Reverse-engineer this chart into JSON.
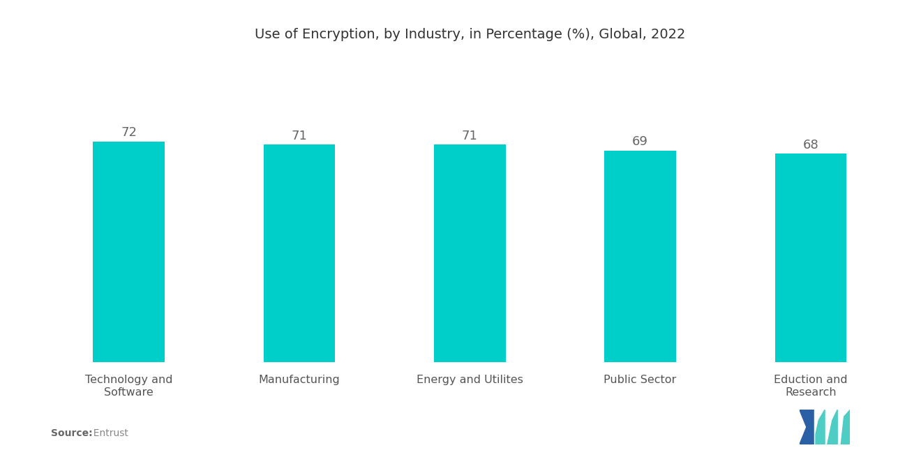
{
  "title": "Use of Encryption, by Industry, in Percentage (%), Global, 2022",
  "categories": [
    "Technology and\nSoftware",
    "Manufacturing",
    "Energy and Utilites",
    "Public Sector",
    "Eduction and\nResearch"
  ],
  "values": [
    72,
    71,
    71,
    69,
    68
  ],
  "bar_color": "#00CEC9",
  "bar_width": 0.42,
  "ylim": [
    0,
    100
  ],
  "value_color": "#666666",
  "value_fontsize": 13,
  "title_fontsize": 14,
  "xlabel_fontsize": 11.5,
  "source_bold": "Source:",
  "source_normal": "  Entrust",
  "background_color": "#ffffff",
  "axes_background": "#ffffff",
  "logo_dark_blue": "#2B5FA6",
  "logo_teal": "#4ECDC4"
}
